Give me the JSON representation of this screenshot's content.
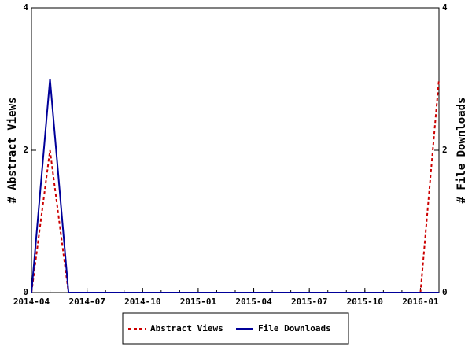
{
  "chart_data": {
    "type": "line",
    "x": [
      "2014-04",
      "2014-05",
      "2014-06",
      "2014-07",
      "2014-08",
      "2014-09",
      "2014-10",
      "2014-11",
      "2014-12",
      "2015-01",
      "2015-02",
      "2015-03",
      "2015-04",
      "2015-05",
      "2015-06",
      "2015-07",
      "2015-08",
      "2015-09",
      "2015-10",
      "2015-11",
      "2015-12",
      "2016-01",
      "2016-02"
    ],
    "xticks": [
      "2014-04",
      "2014-07",
      "2014-10",
      "2015-01",
      "2015-04",
      "2015-07",
      "2015-10",
      "2016-01"
    ],
    "ylabel": "# Abstract Views",
    "y2label": "# File Downloads",
    "ylim": [
      0,
      4
    ],
    "yticks": [
      0,
      2,
      4
    ],
    "y2lim": [
      0,
      4
    ],
    "y2ticks": [
      0,
      2,
      4
    ],
    "series": [
      {
        "name": "Abstract Views",
        "color": "#cc0000",
        "dashed": true,
        "values": [
          0,
          2,
          0,
          0,
          0,
          0,
          0,
          0,
          0,
          0,
          0,
          0,
          0,
          0,
          0,
          0,
          0,
          0,
          0,
          0,
          0,
          0,
          3
        ]
      },
      {
        "name": "File Downloads",
        "color": "#000099",
        "dashed": false,
        "axis": "y2",
        "values": [
          0,
          3,
          0,
          0,
          0,
          0,
          0,
          0,
          0,
          0,
          0,
          0,
          0,
          0,
          0,
          0,
          0,
          0,
          0,
          0,
          0,
          0,
          0
        ]
      }
    ],
    "legend": "bottom"
  }
}
